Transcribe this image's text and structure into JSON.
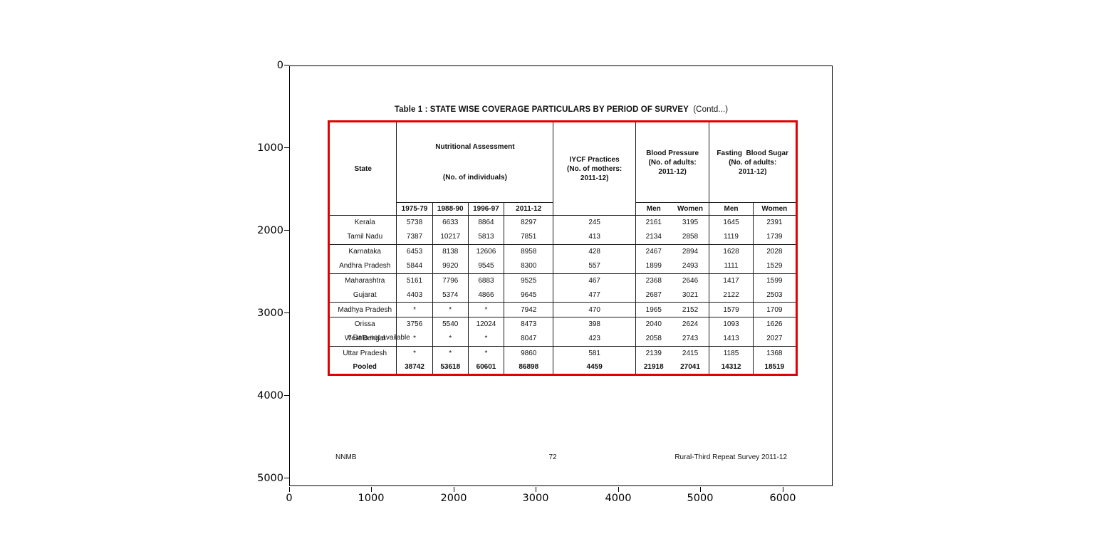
{
  "axes": {
    "x_ticks": [
      "0",
      "1000",
      "2000",
      "3000",
      "4000",
      "5000",
      "6000"
    ],
    "y_ticks": [
      "0",
      "1000",
      "2000",
      "3000",
      "4000",
      "5000"
    ]
  },
  "page": {
    "title": "Table 1 : STATE WISE COVERAGE PARTICULARS BY PERIOD OF SURVEY",
    "title_contd": "(Contd...)",
    "footnote": "* Data not available",
    "footer_left": "NNMB",
    "footer_center": "72",
    "footer_right": "Rural-Third Repeat Survey 2011-12"
  },
  "table": {
    "border_color": "#e00000",
    "header": {
      "state": "State",
      "nutritional_line1": "Nutritional Assessment",
      "nutritional_line2": "(No. of individuals)",
      "years": [
        "1975-79",
        "1988-90",
        "1996-97",
        "2011-12"
      ],
      "iycf": "IYCF Practices\n(No. of mothers:\n2011-12)",
      "blood_pressure": "Blood Pressure\n(No. of adults:\n2011-12)",
      "fasting_blood_sugar": "Fasting  Blood Sugar\n(No. of adults:\n2011-12)",
      "men": "Men",
      "women": "Women"
    },
    "rows": [
      {
        "state": "Kerala",
        "values": [
          "5738",
          "6633",
          "8864",
          "8297",
          "245",
          "2161",
          "3195",
          "1645",
          "2391"
        ],
        "rule_below": false,
        "bold": false
      },
      {
        "state": "Tamil Nadu",
        "values": [
          "7387",
          "10217",
          "5813",
          "7851",
          "413",
          "2134",
          "2858",
          "1119",
          "1739"
        ],
        "rule_below": true,
        "bold": false
      },
      {
        "state": "Karnataka",
        "values": [
          "6453",
          "8138",
          "12606",
          "8958",
          "428",
          "2467",
          "2894",
          "1628",
          "2028"
        ],
        "rule_below": false,
        "bold": false
      },
      {
        "state": "Andhra Pradesh",
        "values": [
          "5844",
          "9920",
          "9545",
          "8300",
          "557",
          "1899",
          "2493",
          "1111",
          "1529"
        ],
        "rule_below": true,
        "bold": false
      },
      {
        "state": "Maharashtra",
        "values": [
          "5161",
          "7796",
          "6883",
          "9525",
          "467",
          "2368",
          "2646",
          "1417",
          "1599"
        ],
        "rule_below": false,
        "bold": false
      },
      {
        "state": "Gujarat",
        "values": [
          "4403",
          "5374",
          "4866",
          "9645",
          "477",
          "2687",
          "3021",
          "2122",
          "2503"
        ],
        "rule_below": true,
        "bold": false
      },
      {
        "state": "Madhya Pradesh",
        "values": [
          "*",
          "*",
          "*",
          "7942",
          "470",
          "1965",
          "2152",
          "1579",
          "1709"
        ],
        "rule_below": true,
        "bold": false
      },
      {
        "state": "Orissa",
        "values": [
          "3756",
          "5540",
          "12024",
          "8473",
          "398",
          "2040",
          "2624",
          "1093",
          "1626"
        ],
        "rule_below": false,
        "bold": false
      },
      {
        "state": "West Bengal",
        "values": [
          "*",
          "*",
          "*",
          "8047",
          "423",
          "2058",
          "2743",
          "1413",
          "2027"
        ],
        "rule_below": true,
        "bold": false
      },
      {
        "state": "Uttar Pradesh",
        "values": [
          "*",
          "*",
          "*",
          "9860",
          "581",
          "2139",
          "2415",
          "1185",
          "1368"
        ],
        "rule_below": false,
        "bold": false
      },
      {
        "state": "Pooled",
        "values": [
          "38742",
          "53618",
          "60601",
          "86898",
          "4459",
          "21918",
          "27041",
          "14312",
          "18519"
        ],
        "rule_below": false,
        "bold": true
      }
    ]
  }
}
